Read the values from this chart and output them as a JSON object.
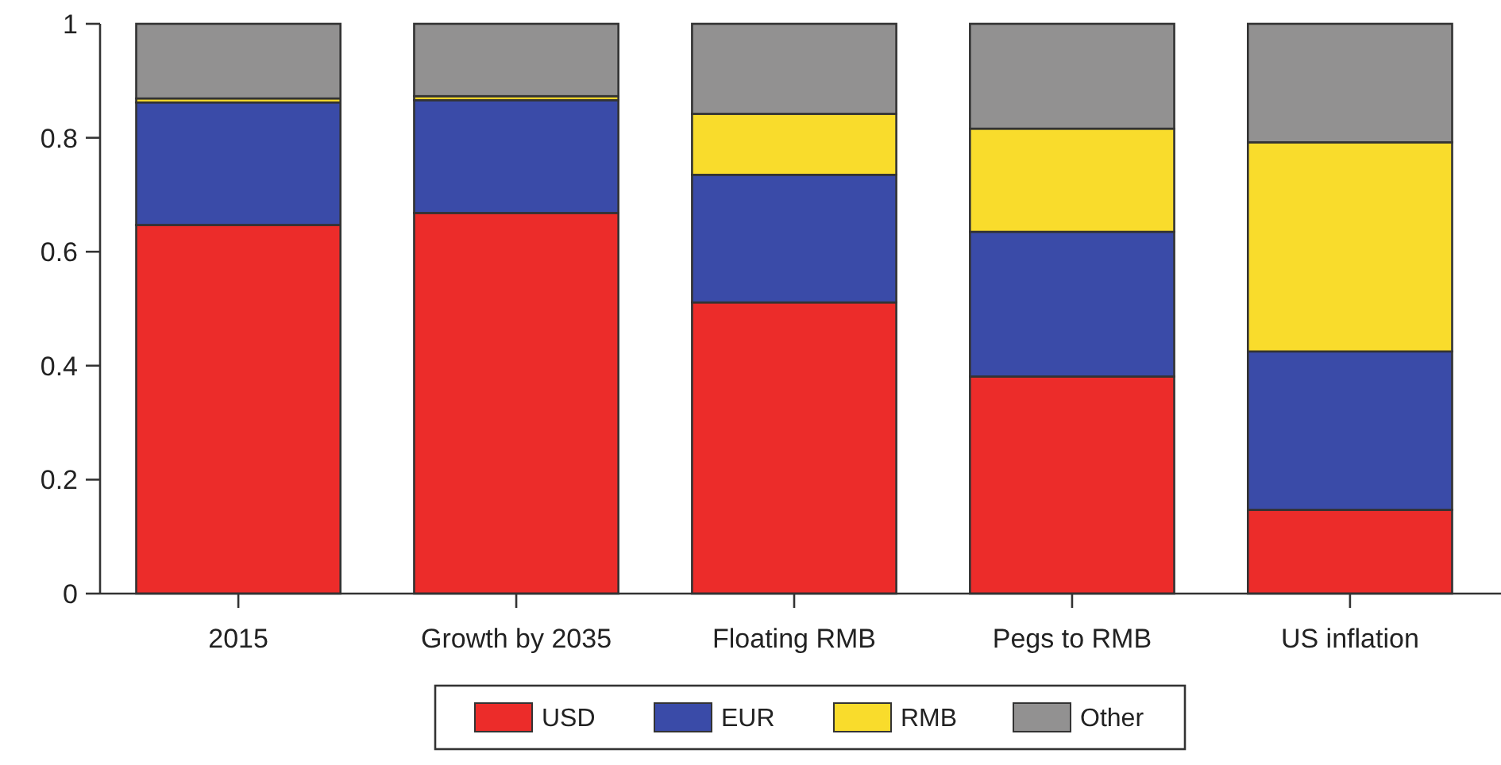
{
  "chart_data": {
    "type": "bar",
    "stacked": true,
    "categories": [
      "2015",
      "Growth by 2035",
      "Floating RMB",
      "Pegs to RMB",
      "US inflation"
    ],
    "series": [
      {
        "name": "USD",
        "color": "#ec2c2a",
        "values": [
          0.647,
          0.668,
          0.511,
          0.381,
          0.147
        ]
      },
      {
        "name": "EUR",
        "color": "#3a4ba8",
        "values": [
          0.215,
          0.198,
          0.224,
          0.254,
          0.278
        ]
      },
      {
        "name": "RMB",
        "color": "#f9dc2c",
        "values": [
          0.007,
          0.007,
          0.107,
          0.181,
          0.367
        ]
      },
      {
        "name": "Other",
        "color": "#929191",
        "values": [
          0.131,
          0.127,
          0.158,
          0.184,
          0.208
        ]
      }
    ],
    "ylim": [
      0,
      1
    ],
    "yticks": [
      0,
      0.2,
      0.4,
      0.6,
      0.8,
      1
    ],
    "grid": false,
    "legend": "bottom"
  }
}
